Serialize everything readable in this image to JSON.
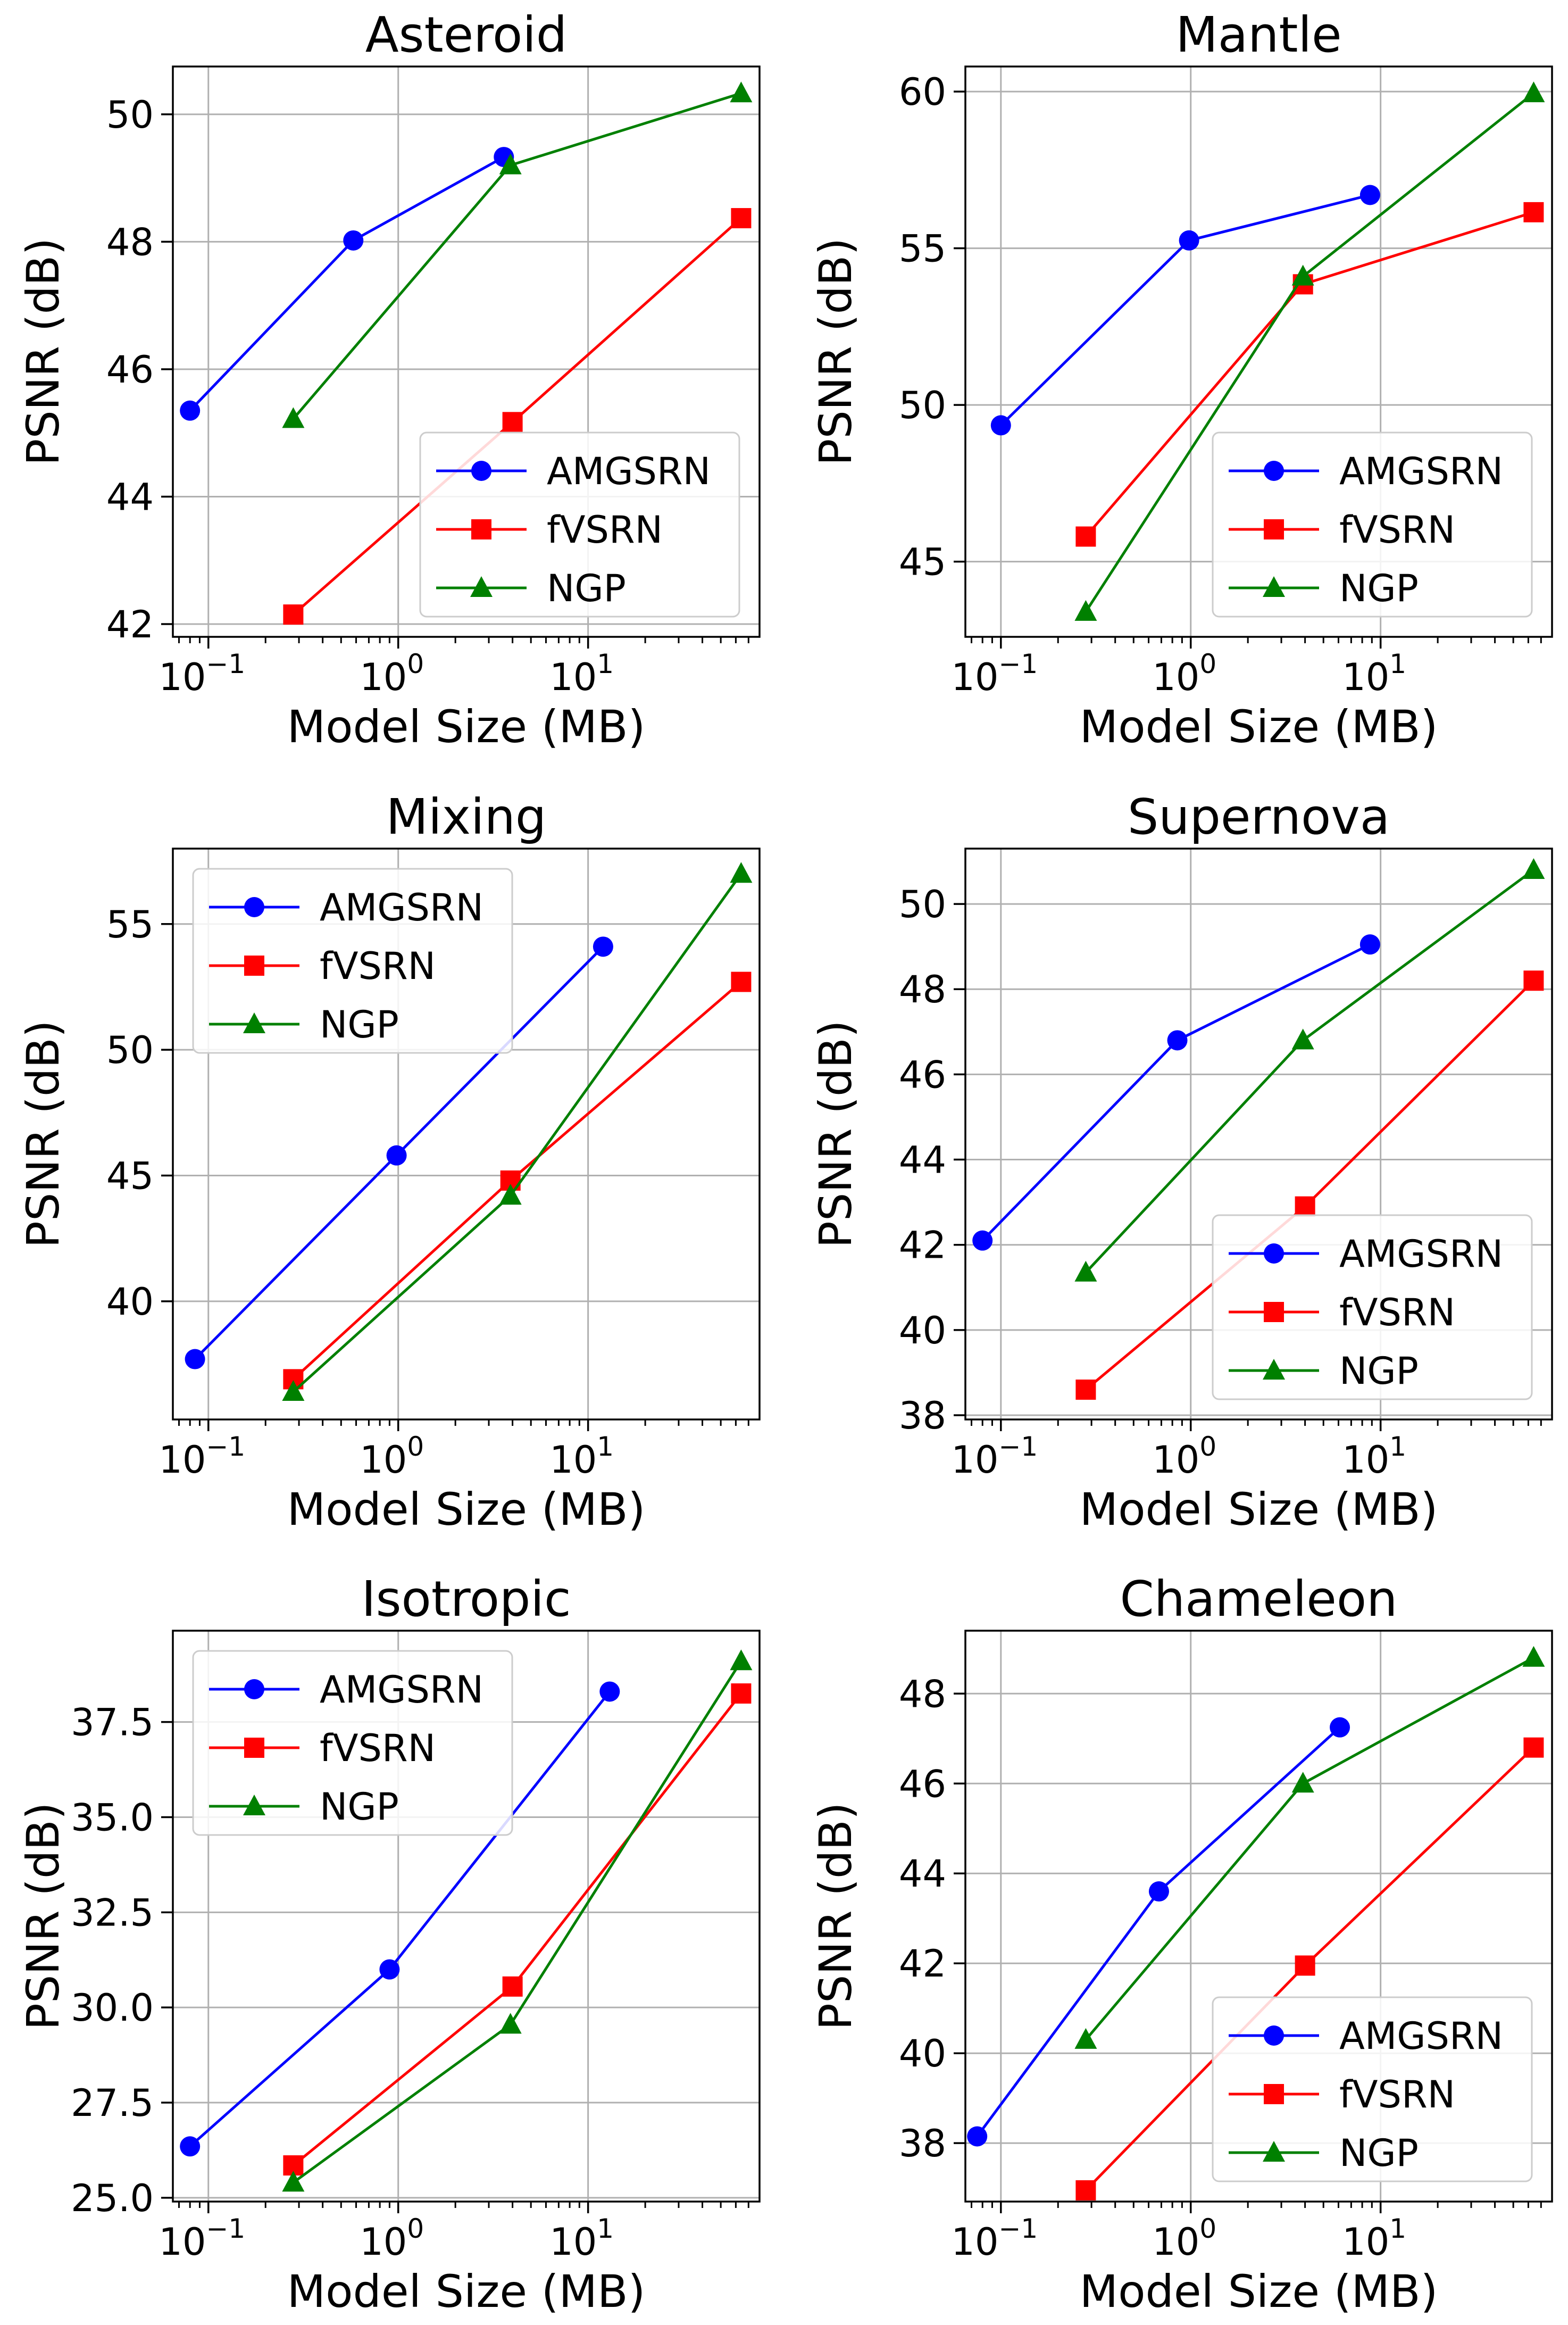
{
  "figure": {
    "x_axis_label": "Model Size (MB)",
    "y_axis_label": "PSNR (dB)"
  },
  "colors": {
    "AMGSRN": "#0000ff",
    "fVSRN": "#ff0000",
    "NGP": "#008000",
    "grid": "#b0b0b0"
  },
  "markers": {
    "AMGSRN": "circle",
    "fVSRN": "square",
    "NGP": "triangle"
  },
  "chart_data": [
    {
      "type": "line",
      "title": "Asteroid",
      "xlabel": "Model Size (MB)",
      "ylabel": "PSNR (dB)",
      "xscale": "log",
      "xlim": [
        0.065,
        80
      ],
      "ylim": [
        41.8,
        50.75
      ],
      "xticks": [
        0.1,
        1,
        10
      ],
      "yticks": [
        42,
        44,
        46,
        48,
        50
      ],
      "ytick_labels": [
        "42",
        "44",
        "46",
        "48",
        "50"
      ],
      "grid": true,
      "legend_position": "lower-right",
      "series": [
        {
          "name": "AMGSRN",
          "x": [
            0.08,
            0.58,
            3.6
          ],
          "y": [
            45.35,
            48.02,
            49.33
          ]
        },
        {
          "name": "fVSRN",
          "x": [
            0.28,
            4.0,
            64
          ],
          "y": [
            42.15,
            45.17,
            48.37
          ]
        },
        {
          "name": "NGP",
          "x": [
            0.28,
            3.9,
            64
          ],
          "y": [
            45.22,
            49.2,
            50.33
          ]
        }
      ]
    },
    {
      "type": "line",
      "title": "Mantle",
      "xlabel": "Model Size (MB)",
      "ylabel": "PSNR (dB)",
      "xscale": "log",
      "xlim": [
        0.065,
        80
      ],
      "ylim": [
        42.6,
        60.8
      ],
      "xticks": [
        0.1,
        1,
        10
      ],
      "yticks": [
        45,
        50,
        55,
        60
      ],
      "ytick_labels": [
        "45",
        "50",
        "55",
        "60"
      ],
      "grid": true,
      "legend_position": "lower-right",
      "series": [
        {
          "name": "AMGSRN",
          "x": [
            0.1,
            0.98,
            8.8
          ],
          "y": [
            49.35,
            55.25,
            56.7
          ]
        },
        {
          "name": "fVSRN",
          "x": [
            0.28,
            3.9,
            64
          ],
          "y": [
            45.8,
            53.85,
            56.15
          ]
        },
        {
          "name": "NGP",
          "x": [
            0.28,
            3.9,
            64
          ],
          "y": [
            43.4,
            54.1,
            59.95
          ]
        }
      ]
    },
    {
      "type": "line",
      "title": "Mixing",
      "xlabel": "Model Size (MB)",
      "ylabel": "PSNR (dB)",
      "xscale": "log",
      "xlim": [
        0.065,
        80
      ],
      "ylim": [
        35.3,
        58.0
      ],
      "xticks": [
        0.1,
        1,
        10
      ],
      "yticks": [
        40,
        45,
        50,
        55
      ],
      "ytick_labels": [
        "40",
        "45",
        "50",
        "55"
      ],
      "grid": true,
      "legend_position": "upper-left",
      "series": [
        {
          "name": "AMGSRN",
          "x": [
            0.085,
            0.98,
            12.0
          ],
          "y": [
            37.7,
            45.8,
            54.1
          ]
        },
        {
          "name": "fVSRN",
          "x": [
            0.28,
            3.9,
            64
          ],
          "y": [
            36.9,
            44.8,
            52.7
          ]
        },
        {
          "name": "NGP",
          "x": [
            0.28,
            3.9,
            64
          ],
          "y": [
            36.4,
            44.2,
            57.0
          ]
        }
      ]
    },
    {
      "type": "line",
      "title": "Supernova",
      "xlabel": "Model Size (MB)",
      "ylabel": "PSNR (dB)",
      "xscale": "log",
      "xlim": [
        0.065,
        80
      ],
      "ylim": [
        37.9,
        51.3
      ],
      "xticks": [
        0.1,
        1,
        10
      ],
      "yticks": [
        38,
        40,
        42,
        44,
        46,
        48,
        50
      ],
      "ytick_labels": [
        "38",
        "40",
        "42",
        "44",
        "46",
        "48",
        "50"
      ],
      "grid": true,
      "legend_position": "lower-right",
      "series": [
        {
          "name": "AMGSRN",
          "x": [
            0.08,
            0.85,
            8.8
          ],
          "y": [
            42.1,
            46.8,
            49.05
          ]
        },
        {
          "name": "fVSRN",
          "x": [
            0.28,
            4.0,
            64
          ],
          "y": [
            38.6,
            42.9,
            48.2
          ]
        },
        {
          "name": "NGP",
          "x": [
            0.28,
            3.9,
            64
          ],
          "y": [
            41.35,
            46.8,
            50.8
          ]
        }
      ]
    },
    {
      "type": "line",
      "title": "Isotropic",
      "xlabel": "Model Size (MB)",
      "ylabel": "PSNR (dB)",
      "xscale": "log",
      "xlim": [
        0.065,
        80
      ],
      "ylim": [
        24.9,
        39.9
      ],
      "xticks": [
        0.1,
        1,
        10
      ],
      "yticks": [
        25.0,
        27.5,
        30.0,
        32.5,
        35.0,
        37.5
      ],
      "ytick_labels": [
        "25.0",
        "27.5",
        "30.0",
        "32.5",
        "35.0",
        "37.5"
      ],
      "grid": true,
      "legend_position": "upper-left",
      "series": [
        {
          "name": "AMGSRN",
          "x": [
            0.08,
            0.9,
            13.0
          ],
          "y": [
            26.35,
            31.0,
            38.3
          ]
        },
        {
          "name": "fVSRN",
          "x": [
            0.28,
            4.0,
            64
          ],
          "y": [
            25.85,
            30.55,
            38.25
          ]
        },
        {
          "name": "NGP",
          "x": [
            0.28,
            3.9,
            64
          ],
          "y": [
            25.4,
            29.55,
            39.1
          ]
        }
      ]
    },
    {
      "type": "line",
      "title": "Chameleon",
      "xlabel": "Model Size (MB)",
      "ylabel": "PSNR (dB)",
      "xscale": "log",
      "xlim": [
        0.065,
        80
      ],
      "ylim": [
        36.7,
        49.4
      ],
      "xticks": [
        0.1,
        1,
        10
      ],
      "yticks": [
        38,
        40,
        42,
        44,
        46,
        48
      ],
      "ytick_labels": [
        "38",
        "40",
        "42",
        "44",
        "46",
        "48"
      ],
      "grid": true,
      "legend_position": "lower-right",
      "series": [
        {
          "name": "AMGSRN",
          "x": [
            0.075,
            0.68,
            6.1
          ],
          "y": [
            38.15,
            43.6,
            47.25
          ]
        },
        {
          "name": "fVSRN",
          "x": [
            0.28,
            4.0,
            64
          ],
          "y": [
            36.95,
            41.95,
            46.8
          ]
        },
        {
          "name": "NGP",
          "x": [
            0.28,
            3.9,
            64
          ],
          "y": [
            40.3,
            46.0,
            48.8
          ]
        }
      ]
    }
  ]
}
